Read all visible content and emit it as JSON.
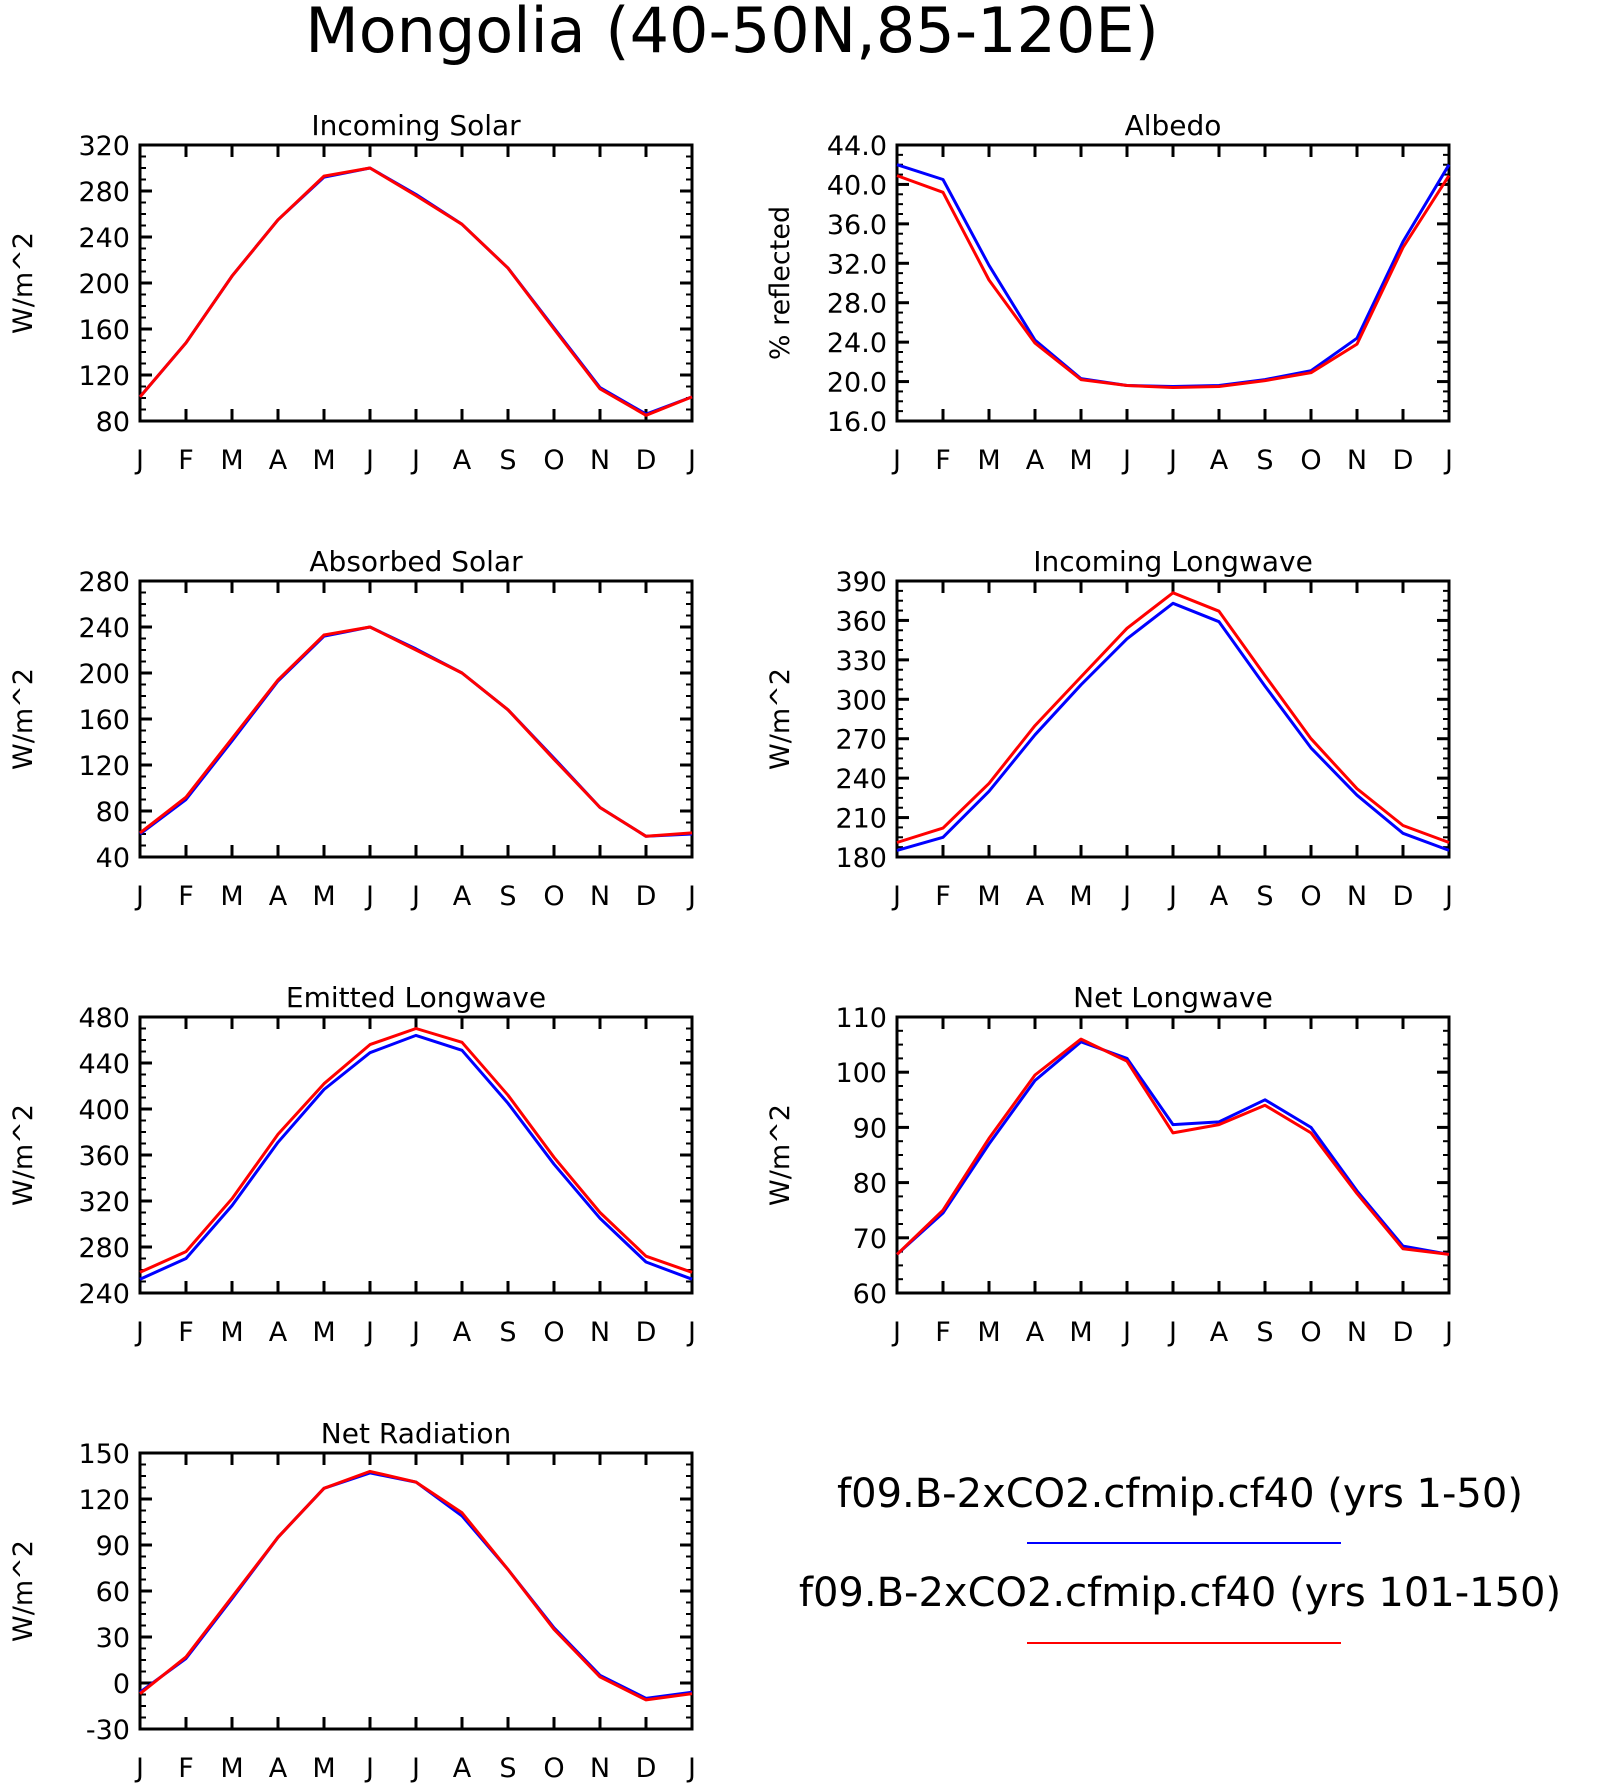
{
  "title": "Mongolia (40-50N,85-120E)",
  "months": [
    "J",
    "F",
    "M",
    "A",
    "M",
    "J",
    "J",
    "A",
    "S",
    "O",
    "N",
    "D",
    "J"
  ],
  "legend": [
    {
      "label": "f09.B-2xCO2.cfmip.cf40 (yrs 1-50)",
      "color": "#0000ff"
    },
    {
      "label": "f09.B-2xCO2.cfmip.cf40 (yrs 101-150)",
      "color": "#ff0000"
    }
  ],
  "chart_data": [
    {
      "type": "line",
      "title": "Incoming Solar",
      "ylabel": "W/m^2",
      "x": [
        "J",
        "F",
        "M",
        "A",
        "M",
        "J",
        "J",
        "A",
        "S",
        "O",
        "N",
        "D",
        "J"
      ],
      "ylim": [
        80,
        320
      ],
      "yticks": [
        "80",
        "120",
        "160",
        "200",
        "240",
        "280",
        "320"
      ],
      "series": [
        {
          "name": "f09.B-2xCO2.cfmip.cf40 (yrs 1-50)",
          "color": "#0000ff",
          "values": [
            101,
            148,
            206,
            255,
            292,
            300,
            277,
            251,
            213,
            161,
            109,
            86,
            101
          ]
        },
        {
          "name": "f09.B-2xCO2.cfmip.cf40 (yrs 101-150)",
          "color": "#ff0000",
          "values": [
            101,
            148,
            206,
            255,
            293,
            300,
            276,
            251,
            213,
            160,
            108,
            85,
            101
          ]
        }
      ]
    },
    {
      "type": "line",
      "title": "Albedo",
      "ylabel": "% reflected",
      "x": [
        "J",
        "F",
        "M",
        "A",
        "M",
        "J",
        "J",
        "A",
        "S",
        "O",
        "N",
        "D",
        "J"
      ],
      "ylim": [
        16,
        44
      ],
      "yticks": [
        "16.0",
        "20.0",
        "24.0",
        "28.0",
        "32.0",
        "36.0",
        "40.0",
        "44.0"
      ],
      "series": [
        {
          "name": "f09.B-2xCO2.cfmip.cf40 (yrs 1-50)",
          "color": "#0000ff",
          "values": [
            42.0,
            40.5,
            31.8,
            24.2,
            20.3,
            19.6,
            19.5,
            19.6,
            20.2,
            21.1,
            24.4,
            34.2,
            42.0
          ]
        },
        {
          "name": "f09.B-2xCO2.cfmip.cf40 (yrs 101-150)",
          "color": "#ff0000",
          "values": [
            40.9,
            39.2,
            30.3,
            23.9,
            20.2,
            19.6,
            19.4,
            19.5,
            20.1,
            20.9,
            23.8,
            33.6,
            40.9
          ]
        }
      ]
    },
    {
      "type": "line",
      "title": "Absorbed Solar",
      "ylabel": "W/m^2",
      "x": [
        "J",
        "F",
        "M",
        "A",
        "M",
        "J",
        "J",
        "A",
        "S",
        "O",
        "N",
        "D",
        "J"
      ],
      "ylim": [
        40,
        280
      ],
      "yticks": [
        "40",
        "80",
        "120",
        "160",
        "200",
        "240",
        "280"
      ],
      "series": [
        {
          "name": "f09.B-2xCO2.cfmip.cf40 (yrs 1-50)",
          "color": "#0000ff",
          "values": [
            60,
            90,
            141,
            193,
            232,
            240,
            221,
            200,
            168,
            126,
            83,
            58,
            60
          ]
        },
        {
          "name": "f09.B-2xCO2.cfmip.cf40 (yrs 101-150)",
          "color": "#ff0000",
          "values": [
            61,
            92,
            143,
            194,
            233,
            240,
            220,
            200,
            168,
            125,
            83,
            58,
            61
          ]
        }
      ]
    },
    {
      "type": "line",
      "title": "Incoming Longwave",
      "ylabel": "W/m^2",
      "x": [
        "J",
        "F",
        "M",
        "A",
        "M",
        "J",
        "J",
        "A",
        "S",
        "O",
        "N",
        "D",
        "J"
      ],
      "ylim": [
        180,
        390
      ],
      "yticks": [
        "180",
        "210",
        "240",
        "270",
        "300",
        "330",
        "360",
        "390"
      ],
      "series": [
        {
          "name": "f09.B-2xCO2.cfmip.cf40 (yrs 1-50)",
          "color": "#0000ff",
          "values": [
            185,
            195,
            230,
            273,
            311,
            346,
            373,
            359,
            310,
            263,
            227,
            198,
            185
          ]
        },
        {
          "name": "f09.B-2xCO2.cfmip.cf40 (yrs 101-150)",
          "color": "#ff0000",
          "values": [
            191,
            202,
            236,
            280,
            317,
            354,
            381,
            367,
            318,
            270,
            232,
            204,
            191
          ]
        }
      ]
    },
    {
      "type": "line",
      "title": "Emitted Longwave",
      "ylabel": "W/m^2",
      "x": [
        "J",
        "F",
        "M",
        "A",
        "M",
        "J",
        "J",
        "A",
        "S",
        "O",
        "N",
        "D",
        "J"
      ],
      "ylim": [
        240,
        480
      ],
      "yticks": [
        "240",
        "280",
        "320",
        "360",
        "400",
        "440",
        "480"
      ],
      "series": [
        {
          "name": "f09.B-2xCO2.cfmip.cf40 (yrs 1-50)",
          "color": "#0000ff",
          "values": [
            252,
            270,
            316,
            371,
            417,
            449,
            464,
            451,
            405,
            352,
            305,
            267,
            252
          ]
        },
        {
          "name": "f09.B-2xCO2.cfmip.cf40 (yrs 101-150)",
          "color": "#ff0000",
          "values": [
            258,
            276,
            322,
            378,
            422,
            456,
            470,
            458,
            412,
            358,
            310,
            272,
            258
          ]
        }
      ]
    },
    {
      "type": "line",
      "title": "Net Longwave",
      "ylabel": "W/m^2",
      "x": [
        "J",
        "F",
        "M",
        "A",
        "M",
        "J",
        "J",
        "A",
        "S",
        "O",
        "N",
        "D",
        "J"
      ],
      "ylim": [
        60,
        110
      ],
      "yticks": [
        "60",
        "70",
        "80",
        "90",
        "100",
        "110"
      ],
      "series": [
        {
          "name": "f09.B-2xCO2.cfmip.cf40 (yrs 1-50)",
          "color": "#0000ff",
          "values": [
            67,
            74.5,
            87,
            98.5,
            105.5,
            102.5,
            90.5,
            91,
            95,
            90,
            78.5,
            68.5,
            67
          ]
        },
        {
          "name": "f09.B-2xCO2.cfmip.cf40 (yrs 101-150)",
          "color": "#ff0000",
          "values": [
            67,
            75,
            88,
            99.5,
            106,
            102,
            89,
            90.5,
            94,
            89,
            78,
            68,
            67
          ]
        }
      ]
    },
    {
      "type": "line",
      "title": "Net Radiation",
      "ylabel": "W/m^2",
      "x": [
        "J",
        "F",
        "M",
        "A",
        "M",
        "J",
        "J",
        "A",
        "S",
        "O",
        "N",
        "D",
        "J"
      ],
      "ylim": [
        -30,
        150
      ],
      "yticks": [
        "-30",
        "0",
        "30",
        "60",
        "90",
        "120",
        "150"
      ],
      "series": [
        {
          "name": "f09.B-2xCO2.cfmip.cf40 (yrs 1-50)",
          "color": "#0000ff",
          "values": [
            -6,
            16,
            55,
            95,
            127,
            137,
            131,
            109,
            74,
            36,
            5,
            -10,
            -6
          ]
        },
        {
          "name": "f09.B-2xCO2.cfmip.cf40 (yrs 101-150)",
          "color": "#ff0000",
          "values": [
            -7,
            17,
            56,
            95,
            127,
            138,
            131,
            111,
            74,
            35,
            4,
            -11,
            -7
          ]
        }
      ]
    }
  ]
}
